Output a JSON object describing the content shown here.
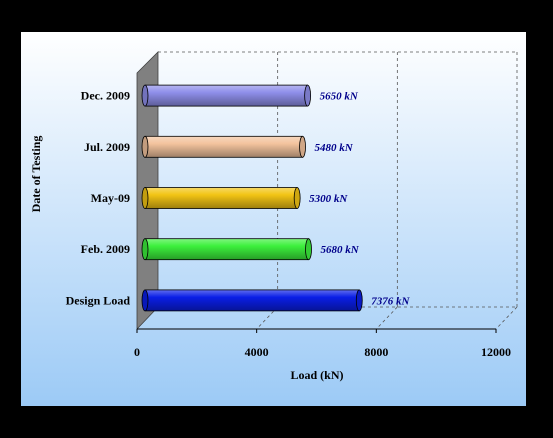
{
  "chart_data": {
    "type": "bar",
    "orientation": "horizontal",
    "style": "3d-cylinder",
    "categories": [
      "Design Load",
      "Feb. 2009",
      "May-09",
      "Jul. 2009",
      "Dec. 2009"
    ],
    "values": [
      7376,
      5680,
      5300,
      5480,
      5650
    ],
    "data_labels": [
      "7376 kN",
      "5680 kN",
      "5300 kN",
      "5480 kN",
      "5650 kN"
    ],
    "bar_colors": [
      "#0a1ee6",
      "#3cf03c",
      "#f2c414",
      "#f3c39e",
      "#8f8fea"
    ],
    "xlabel": "Load (kN)",
    "ylabel": "Date of Testing",
    "xlim": [
      0,
      12000
    ],
    "x_ticks": [
      0,
      4000,
      8000,
      12000
    ],
    "x_tick_labels": [
      "0",
      "4000",
      "8000",
      "12000"
    ],
    "grid": "vertical dashed",
    "legend": "none",
    "colors": {
      "page_background": "#000000",
      "plot_background_top": "#ffffff",
      "plot_background_bottom": "#9ccaf6",
      "wall": "#808080",
      "data_label_text": "#00008b"
    }
  }
}
